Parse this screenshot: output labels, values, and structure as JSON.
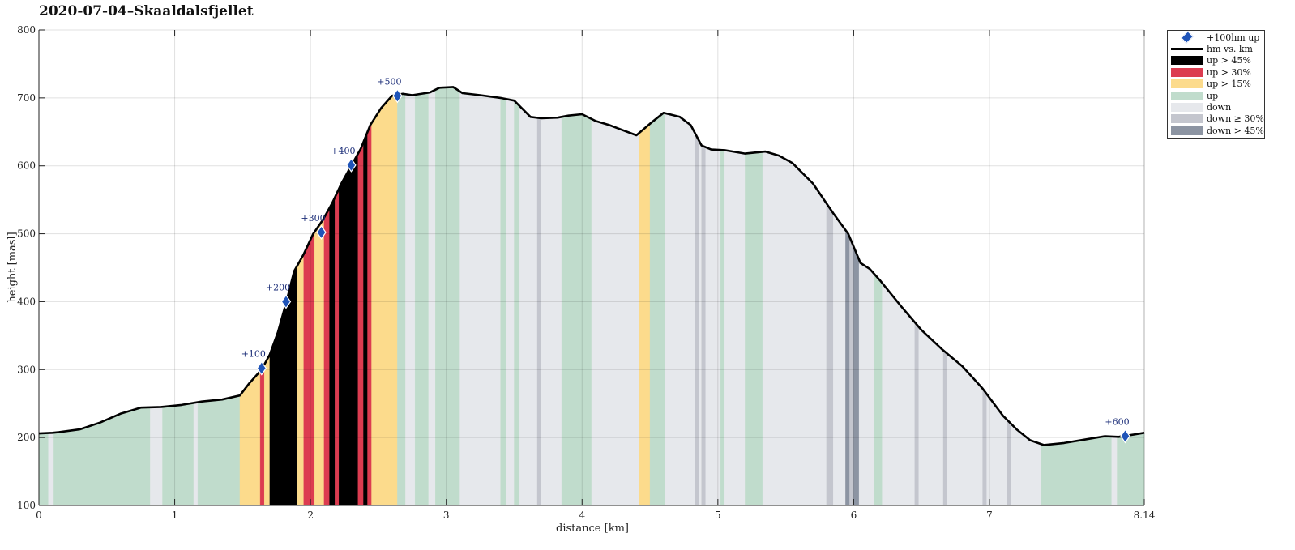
{
  "title": "2020-07-04–Skaaldalsfjellet",
  "colors": {
    "up45": "#000000",
    "up30": "#dc3c50",
    "up15": "#fcdb8c",
    "up": "#c0dccc",
    "down": "#e6e8ec",
    "down30": "#c4c6ce",
    "down45": "#8c94a2",
    "line": "#000000",
    "marker": "#1f54b8"
  },
  "legend": [
    {
      "key": "marker",
      "label": "+100hm up",
      "kind": "diamond"
    },
    {
      "key": "line",
      "label": "hm vs. km",
      "kind": "line"
    },
    {
      "key": "up45",
      "label": "up > 45%",
      "kind": "swatch"
    },
    {
      "key": "up30",
      "label": "up > 30%",
      "kind": "swatch"
    },
    {
      "key": "up15",
      "label": "up > 15%",
      "kind": "swatch"
    },
    {
      "key": "up",
      "label": "up",
      "kind": "swatch"
    },
    {
      "key": "down",
      "label": "down",
      "kind": "swatch"
    },
    {
      "key": "down30",
      "label": "down ≥ 30%",
      "kind": "swatch"
    },
    {
      "key": "down45",
      "label": "down > 45%",
      "kind": "swatch"
    }
  ],
  "chart_data": {
    "type": "area",
    "title": "2020-07-04–Skaaldalsfjellet",
    "xlabel": "distance [km]",
    "ylabel": "height [masl]",
    "xlim": [
      0,
      8.14
    ],
    "ylim": [
      100,
      800
    ],
    "xticks": [
      "0",
      "1",
      "2",
      "3",
      "4",
      "5",
      "6",
      "7",
      "8.14"
    ],
    "xtick_values": [
      0,
      1,
      2,
      3,
      4,
      5,
      6,
      7,
      8.14
    ],
    "yticks": [
      "100",
      "200",
      "300",
      "400",
      "500",
      "600",
      "700",
      "800"
    ],
    "ytick_values": [
      100,
      200,
      300,
      400,
      500,
      600,
      700,
      800
    ],
    "grid": true,
    "legend_position": "outside-top-right",
    "profile": {
      "x": [
        0,
        0.1,
        0.15,
        0.3,
        0.45,
        0.6,
        0.75,
        0.9,
        1.05,
        1.2,
        1.35,
        1.48,
        1.55,
        1.64,
        1.7,
        1.76,
        1.82,
        1.88,
        1.95,
        2.02,
        2.09,
        2.16,
        2.23,
        2.3,
        2.37,
        2.44,
        2.52,
        2.6,
        2.68,
        2.75,
        2.88,
        2.95,
        3.05,
        3.12,
        3.25,
        3.4,
        3.5,
        3.62,
        3.7,
        3.82,
        3.9,
        4.0,
        4.1,
        4.2,
        4.4,
        4.5,
        4.6,
        4.72,
        4.8,
        4.88,
        4.95,
        5.05,
        5.2,
        5.35,
        5.45,
        5.55,
        5.7,
        5.85,
        5.96,
        6.05,
        6.12,
        6.2,
        6.35,
        6.5,
        6.65,
        6.8,
        6.95,
        7.1,
        7.2,
        7.3,
        7.4,
        7.55,
        7.7,
        7.85,
        7.95,
        8.05,
        8.14
      ],
      "y": [
        206,
        207,
        208,
        212,
        222,
        235,
        244,
        245,
        248,
        253,
        256,
        262,
        280,
        300,
        322,
        355,
        398,
        445,
        470,
        500,
        520,
        545,
        575,
        600,
        625,
        660,
        685,
        703,
        706,
        704,
        708,
        715,
        716,
        707,
        704,
        700,
        696,
        672,
        670,
        671,
        674,
        676,
        666,
        660,
        645,
        662,
        678,
        672,
        660,
        630,
        624,
        623,
        618,
        621,
        615,
        604,
        574,
        530,
        500,
        457,
        448,
        430,
        393,
        358,
        330,
        305,
        272,
        232,
        212,
        196,
        189,
        192,
        197,
        202,
        201,
        204,
        207
      ]
    },
    "segments": [
      {
        "x0": 0.0,
        "x1": 0.07,
        "cat": "up"
      },
      {
        "x0": 0.07,
        "x1": 0.11,
        "cat": "down"
      },
      {
        "x0": 0.11,
        "x1": 0.16,
        "cat": "up"
      },
      {
        "x0": 0.16,
        "x1": 0.82,
        "cat": "up"
      },
      {
        "x0": 0.82,
        "x1": 0.91,
        "cat": "down"
      },
      {
        "x0": 0.91,
        "x1": 1.14,
        "cat": "up"
      },
      {
        "x0": 1.14,
        "x1": 1.17,
        "cat": "down"
      },
      {
        "x0": 1.17,
        "x1": 1.48,
        "cat": "up"
      },
      {
        "x0": 1.48,
        "x1": 1.63,
        "cat": "up15"
      },
      {
        "x0": 1.63,
        "x1": 1.66,
        "cat": "up30"
      },
      {
        "x0": 1.66,
        "x1": 1.7,
        "cat": "up15"
      },
      {
        "x0": 1.7,
        "x1": 1.9,
        "cat": "up45"
      },
      {
        "x0": 1.9,
        "x1": 1.95,
        "cat": "up15"
      },
      {
        "x0": 1.95,
        "x1": 2.03,
        "cat": "up30"
      },
      {
        "x0": 2.03,
        "x1": 2.1,
        "cat": "up15"
      },
      {
        "x0": 2.1,
        "x1": 2.14,
        "cat": "up30"
      },
      {
        "x0": 2.14,
        "x1": 2.18,
        "cat": "up45"
      },
      {
        "x0": 2.18,
        "x1": 2.21,
        "cat": "up30"
      },
      {
        "x0": 2.21,
        "x1": 2.35,
        "cat": "up45"
      },
      {
        "x0": 2.35,
        "x1": 2.39,
        "cat": "up30"
      },
      {
        "x0": 2.39,
        "x1": 2.42,
        "cat": "up45"
      },
      {
        "x0": 2.42,
        "x1": 2.45,
        "cat": "up30"
      },
      {
        "x0": 2.45,
        "x1": 2.64,
        "cat": "up15"
      },
      {
        "x0": 2.64,
        "x1": 2.7,
        "cat": "up"
      },
      {
        "x0": 2.7,
        "x1": 2.77,
        "cat": "down"
      },
      {
        "x0": 2.77,
        "x1": 2.87,
        "cat": "up"
      },
      {
        "x0": 2.87,
        "x1": 2.92,
        "cat": "down"
      },
      {
        "x0": 2.92,
        "x1": 3.1,
        "cat": "up"
      },
      {
        "x0": 3.1,
        "x1": 3.4,
        "cat": "down"
      },
      {
        "x0": 3.4,
        "x1": 3.44,
        "cat": "up"
      },
      {
        "x0": 3.44,
        "x1": 3.5,
        "cat": "down"
      },
      {
        "x0": 3.5,
        "x1": 3.54,
        "cat": "up"
      },
      {
        "x0": 3.54,
        "x1": 3.67,
        "cat": "down"
      },
      {
        "x0": 3.67,
        "x1": 3.7,
        "cat": "down30"
      },
      {
        "x0": 3.7,
        "x1": 3.85,
        "cat": "down"
      },
      {
        "x0": 3.85,
        "x1": 4.07,
        "cat": "up"
      },
      {
        "x0": 4.07,
        "x1": 4.42,
        "cat": "down"
      },
      {
        "x0": 4.42,
        "x1": 4.5,
        "cat": "up15"
      },
      {
        "x0": 4.5,
        "x1": 4.61,
        "cat": "up"
      },
      {
        "x0": 4.61,
        "x1": 4.83,
        "cat": "down"
      },
      {
        "x0": 4.83,
        "x1": 4.86,
        "cat": "down30"
      },
      {
        "x0": 4.86,
        "x1": 4.88,
        "cat": "down"
      },
      {
        "x0": 4.88,
        "x1": 4.91,
        "cat": "down30"
      },
      {
        "x0": 4.91,
        "x1": 5.02,
        "cat": "down"
      },
      {
        "x0": 5.02,
        "x1": 5.05,
        "cat": "up"
      },
      {
        "x0": 5.05,
        "x1": 5.2,
        "cat": "down"
      },
      {
        "x0": 5.2,
        "x1": 5.33,
        "cat": "up"
      },
      {
        "x0": 5.33,
        "x1": 5.8,
        "cat": "down"
      },
      {
        "x0": 5.8,
        "x1": 5.85,
        "cat": "down30"
      },
      {
        "x0": 5.85,
        "x1": 5.94,
        "cat": "down"
      },
      {
        "x0": 5.94,
        "x1": 5.97,
        "cat": "down45"
      },
      {
        "x0": 5.97,
        "x1": 6.0,
        "cat": "down30"
      },
      {
        "x0": 6.0,
        "x1": 6.04,
        "cat": "down45"
      },
      {
        "x0": 6.04,
        "x1": 6.15,
        "cat": "down"
      },
      {
        "x0": 6.15,
        "x1": 6.21,
        "cat": "up"
      },
      {
        "x0": 6.21,
        "x1": 6.45,
        "cat": "down"
      },
      {
        "x0": 6.45,
        "x1": 6.48,
        "cat": "down30"
      },
      {
        "x0": 6.48,
        "x1": 6.66,
        "cat": "down"
      },
      {
        "x0": 6.66,
        "x1": 6.69,
        "cat": "down30"
      },
      {
        "x0": 6.69,
        "x1": 6.95,
        "cat": "down"
      },
      {
        "x0": 6.95,
        "x1": 6.98,
        "cat": "down30"
      },
      {
        "x0": 6.98,
        "x1": 7.13,
        "cat": "down"
      },
      {
        "x0": 7.13,
        "x1": 7.16,
        "cat": "down30"
      },
      {
        "x0": 7.16,
        "x1": 7.38,
        "cat": "down"
      },
      {
        "x0": 7.38,
        "x1": 7.9,
        "cat": "up"
      },
      {
        "x0": 7.9,
        "x1": 7.94,
        "cat": "down"
      },
      {
        "x0": 7.94,
        "x1": 8.14,
        "cat": "up"
      }
    ],
    "markers": [
      {
        "x": 1.64,
        "y": 302,
        "label": "+100"
      },
      {
        "x": 1.82,
        "y": 400,
        "label": "+200"
      },
      {
        "x": 2.08,
        "y": 502,
        "label": "+300"
      },
      {
        "x": 2.3,
        "y": 601,
        "label": "+400"
      },
      {
        "x": 2.64,
        "y": 703,
        "label": "+500"
      },
      {
        "x": 8.0,
        "y": 202,
        "label": "+600"
      }
    ]
  }
}
